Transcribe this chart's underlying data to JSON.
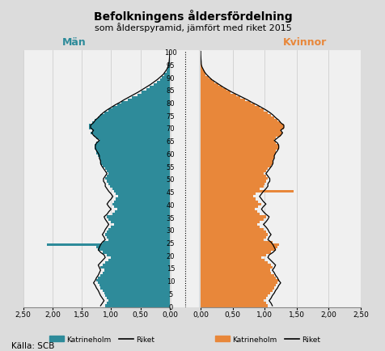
{
  "title_line1": "Befolkningens åldersfördelning",
  "title_line2": "som ålderspyramid, jämfört med riket 2015",
  "label_men": "Män",
  "label_women": "Kvinnor",
  "source_label": "Källa: SCB",
  "legend_katrineholm": "Katrineholm",
  "legend_riket": "Riket",
  "men_color": "#2E8B9A",
  "women_color": "#E8873A",
  "riket_color": "#000000",
  "bg_color": "#DCDCDC",
  "plot_bg_color": "#F0F0F0",
  "xlim": 2.5,
  "ages": [
    0,
    1,
    2,
    3,
    4,
    5,
    6,
    7,
    8,
    9,
    10,
    11,
    12,
    13,
    14,
    15,
    16,
    17,
    18,
    19,
    20,
    21,
    22,
    23,
    24,
    25,
    26,
    27,
    28,
    29,
    30,
    31,
    32,
    33,
    34,
    35,
    36,
    37,
    38,
    39,
    40,
    41,
    42,
    43,
    44,
    45,
    46,
    47,
    48,
    49,
    50,
    51,
    52,
    53,
    54,
    55,
    56,
    57,
    58,
    59,
    60,
    61,
    62,
    63,
    64,
    65,
    66,
    67,
    68,
    69,
    70,
    71,
    72,
    73,
    74,
    75,
    76,
    77,
    78,
    79,
    80,
    81,
    82,
    83,
    84,
    85,
    86,
    87,
    88,
    89,
    90,
    91,
    92,
    93,
    94,
    95,
    96,
    97,
    98,
    99,
    100
  ],
  "men_kat": [
    1.1,
    1.08,
    1.05,
    1.08,
    1.1,
    1.12,
    1.15,
    1.18,
    1.2,
    1.22,
    1.25,
    1.22,
    1.18,
    1.15,
    1.12,
    1.18,
    1.15,
    1.1,
    1.05,
    1.0,
    1.08,
    1.15,
    1.22,
    1.25,
    2.1,
    1.15,
    1.05,
    1.08,
    1.1,
    1.08,
    1.05,
    1.0,
    0.95,
    1.0,
    1.05,
    1.08,
    0.98,
    0.93,
    0.9,
    0.95,
    0.98,
    0.95,
    0.92,
    0.88,
    0.92,
    0.95,
    0.98,
    1.02,
    1.05,
    1.08,
    1.1,
    1.08,
    1.05,
    1.08,
    1.1,
    1.15,
    1.18,
    1.18,
    1.2,
    1.22,
    1.25,
    1.25,
    1.28,
    1.28,
    1.25,
    1.2,
    1.25,
    1.3,
    1.35,
    1.32,
    1.38,
    1.38,
    1.32,
    1.28,
    1.22,
    1.18,
    1.12,
    1.05,
    0.98,
    0.9,
    0.82,
    0.72,
    0.65,
    0.55,
    0.48,
    0.4,
    0.34,
    0.28,
    0.22,
    0.17,
    0.13,
    0.09,
    0.06,
    0.04,
    0.03,
    0.02,
    0.01,
    0.005,
    0.003,
    0.001,
    0.001
  ],
  "women_kat": [
    1.05,
    1.02,
    0.98,
    1.02,
    1.05,
    1.08,
    1.12,
    1.15,
    1.18,
    1.2,
    1.22,
    1.18,
    1.15,
    1.1,
    1.08,
    1.12,
    1.1,
    1.05,
    1.0,
    0.95,
    1.02,
    1.1,
    1.18,
    1.2,
    1.22,
    1.12,
    0.98,
    1.02,
    1.05,
    1.02,
    0.98,
    0.92,
    0.88,
    0.92,
    0.98,
    1.02,
    0.92,
    0.88,
    0.84,
    0.9,
    0.95,
    0.9,
    0.86,
    0.82,
    0.86,
    1.45,
    0.92,
    0.98,
    1.0,
    1.02,
    1.05,
    1.02,
    0.98,
    1.02,
    1.05,
    1.1,
    1.12,
    1.12,
    1.15,
    1.15,
    1.18,
    1.18,
    1.22,
    1.22,
    1.18,
    1.15,
    1.18,
    1.25,
    1.28,
    1.25,
    1.3,
    1.3,
    1.25,
    1.2,
    1.15,
    1.1,
    1.05,
    0.98,
    0.92,
    0.85,
    0.78,
    0.7,
    0.62,
    0.55,
    0.47,
    0.4,
    0.34,
    0.28,
    0.22,
    0.17,
    0.12,
    0.08,
    0.06,
    0.04,
    0.02,
    0.01,
    0.008,
    0.005,
    0.003,
    0.001,
    0.001
  ],
  "men_riket": [
    1.18,
    1.15,
    1.12,
    1.15,
    1.18,
    1.2,
    1.22,
    1.25,
    1.27,
    1.3,
    1.27,
    1.25,
    1.22,
    1.2,
    1.18,
    1.2,
    1.22,
    1.18,
    1.14,
    1.1,
    1.12,
    1.18,
    1.22,
    1.2,
    1.18,
    1.15,
    1.1,
    1.12,
    1.15,
    1.12,
    1.1,
    1.07,
    1.04,
    1.07,
    1.1,
    1.12,
    1.07,
    1.04,
    1.0,
    1.04,
    1.07,
    1.04,
    1.0,
    0.97,
    1.0,
    1.04,
    1.07,
    1.1,
    1.1,
    1.13,
    1.13,
    1.1,
    1.07,
    1.1,
    1.13,
    1.16,
    1.18,
    1.18,
    1.2,
    1.2,
    1.22,
    1.25,
    1.27,
    1.27,
    1.25,
    1.2,
    1.25,
    1.3,
    1.33,
    1.3,
    1.35,
    1.35,
    1.3,
    1.27,
    1.22,
    1.18,
    1.13,
    1.07,
    1.0,
    0.93,
    0.85,
    0.78,
    0.7,
    0.62,
    0.54,
    0.47,
    0.4,
    0.33,
    0.27,
    0.21,
    0.16,
    0.11,
    0.08,
    0.05,
    0.03,
    0.02,
    0.01,
    0.006,
    0.003,
    0.001,
    0.001
  ],
  "women_riket": [
    1.12,
    1.1,
    1.07,
    1.1,
    1.12,
    1.15,
    1.17,
    1.2,
    1.22,
    1.25,
    1.22,
    1.2,
    1.17,
    1.15,
    1.12,
    1.15,
    1.17,
    1.13,
    1.09,
    1.05,
    1.07,
    1.13,
    1.17,
    1.15,
    1.13,
    1.1,
    1.05,
    1.07,
    1.1,
    1.07,
    1.05,
    1.02,
    0.98,
    1.02,
    1.05,
    1.07,
    1.02,
    0.98,
    0.95,
    0.98,
    1.02,
    0.98,
    0.95,
    0.92,
    0.95,
    0.98,
    1.02,
    1.05,
    1.05,
    1.08,
    1.08,
    1.05,
    1.02,
    1.05,
    1.08,
    1.11,
    1.13,
    1.13,
    1.15,
    1.15,
    1.17,
    1.2,
    1.22,
    1.22,
    1.2,
    1.15,
    1.2,
    1.25,
    1.28,
    1.25,
    1.3,
    1.3,
    1.25,
    1.22,
    1.17,
    1.13,
    1.08,
    1.02,
    0.95,
    0.88,
    0.8,
    0.73,
    0.65,
    0.57,
    0.49,
    0.42,
    0.35,
    0.29,
    0.23,
    0.17,
    0.13,
    0.09,
    0.06,
    0.04,
    0.02,
    0.01,
    0.008,
    0.005,
    0.003,
    0.001,
    0.001
  ]
}
